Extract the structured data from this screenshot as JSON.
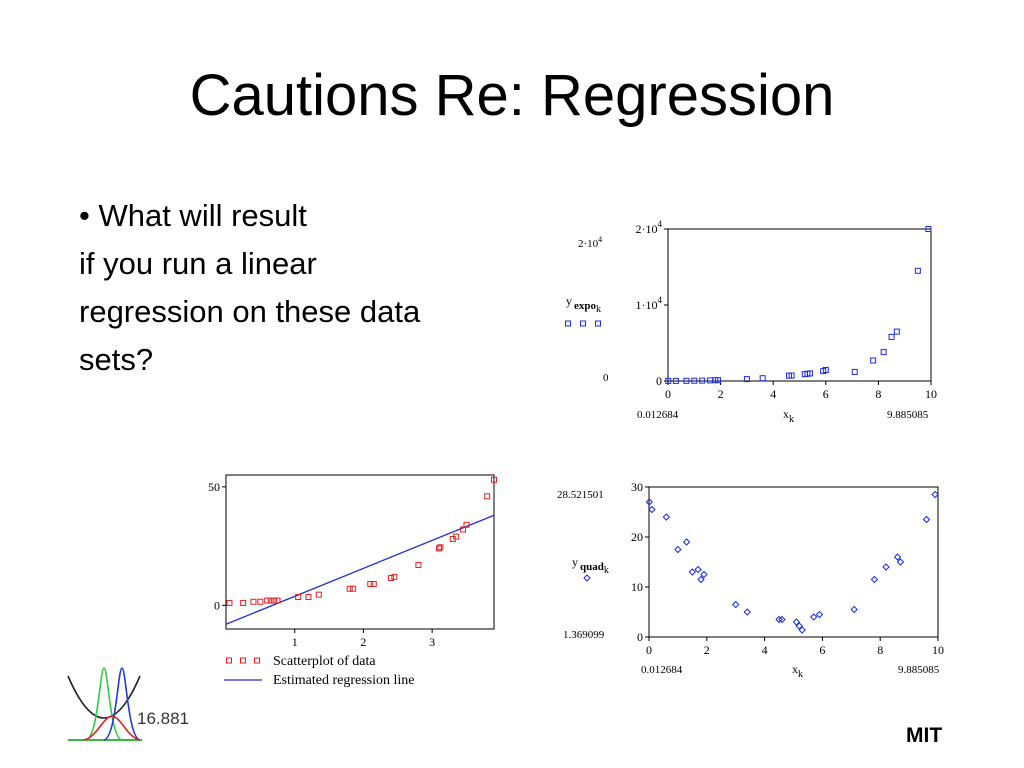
{
  "slide": {
    "title": "Cautions Re: Regression",
    "bullet_lines": [
      "• What will result",
      "if you run a linear",
      "regression on these data",
      "sets?"
    ],
    "footer": "MIT",
    "logo_number": "16.881"
  },
  "colors": {
    "scatter_red": "#e02020",
    "regression_blue": "#2030d0",
    "marker_blue": "#1a2ae0"
  },
  "chart_data": [
    {
      "id": "expo",
      "type": "scatter",
      "marker": "square",
      "ylabel_main": "y",
      "ylabel_sub": "expo",
      "ylabel_idx": "k",
      "xlabel_main": "x",
      "xlabel_idx": "k",
      "xlim": [
        0,
        10
      ],
      "ylim": [
        0,
        20000
      ],
      "xticks": [
        "0",
        "2",
        "4",
        "6",
        "8",
        "10"
      ],
      "yticks": [
        {
          "v": 0,
          "label": "0"
        },
        {
          "v": 10000,
          "label": "1·10"
        },
        {
          "v": 20000,
          "label": "2·10"
        }
      ],
      "ytick_exp": "4",
      "ymax_label": "2·10",
      "ymax_exp": "4",
      "ymin_label": "0",
      "xmin_label": "0.012684",
      "xmax_label": "9.885085",
      "x": [
        0.01,
        0.3,
        0.7,
        1.0,
        1.3,
        1.6,
        1.8,
        1.9,
        3.0,
        3.6,
        4.6,
        4.7,
        5.2,
        5.3,
        5.4,
        5.9,
        6.0,
        7.1,
        7.8,
        8.2,
        8.5,
        8.7,
        9.5,
        9.9
      ],
      "y": [
        10,
        15,
        25,
        35,
        50,
        80,
        100,
        110,
        250,
        370,
        700,
        720,
        900,
        950,
        1000,
        1300,
        1450,
        1200,
        2700,
        3800,
        5800,
        6500,
        14500,
        20000
      ]
    },
    {
      "id": "linear",
      "type": "scatter",
      "marker": "square",
      "xlim": [
        0,
        3.9
      ],
      "ylim": [
        -10,
        55
      ],
      "xticks": [
        "1",
        "2",
        "3"
      ],
      "yticks": [
        {
          "v": 0,
          "label": "0"
        },
        {
          "v": 50,
          "label": "50"
        }
      ],
      "x": [
        0.05,
        0.25,
        0.4,
        0.5,
        0.6,
        0.65,
        0.7,
        0.75,
        1.05,
        1.2,
        1.35,
        1.8,
        1.85,
        2.1,
        2.15,
        2.4,
        2.45,
        2.8,
        3.1,
        3.12,
        3.3,
        3.35,
        3.45,
        3.5,
        3.8,
        3.9
      ],
      "y": [
        1,
        1,
        1.5,
        1.5,
        2,
        2,
        2,
        2,
        3.5,
        3.5,
        4.5,
        7,
        7,
        9,
        9,
        11.5,
        12,
        17,
        24,
        24.5,
        28,
        29,
        32,
        34,
        46,
        53
      ],
      "regression": {
        "x": [
          0,
          3.9
        ],
        "y": [
          -8,
          38
        ]
      },
      "legend": [
        {
          "kind": "marker",
          "label": "Scatterplot of data"
        },
        {
          "kind": "line",
          "label": "Estimated regression line"
        }
      ]
    },
    {
      "id": "quad",
      "type": "scatter",
      "marker": "diamond",
      "ylabel_main": "y",
      "ylabel_sub": "quad",
      "ylabel_idx": "k",
      "xlabel_main": "x",
      "xlabel_idx": "k",
      "xlim": [
        0,
        10
      ],
      "ylim": [
        0,
        30
      ],
      "xticks": [
        "0",
        "2",
        "4",
        "6",
        "8",
        "10"
      ],
      "yticks": [
        {
          "v": 0,
          "label": "0"
        },
        {
          "v": 10,
          "label": "10"
        },
        {
          "v": 20,
          "label": "20"
        },
        {
          "v": 30,
          "label": "30"
        }
      ],
      "ymax_label": "28.521501",
      "ymin_label": "1.369099",
      "xmin_label": "0.012684",
      "xmax_label": "9.885085",
      "x": [
        0.01,
        0.1,
        0.6,
        1.0,
        1.3,
        1.5,
        1.7,
        1.8,
        1.9,
        3.0,
        3.4,
        4.5,
        4.6,
        5.1,
        5.2,
        5.3,
        5.7,
        5.9,
        7.1,
        7.8,
        8.2,
        8.6,
        8.7,
        9.6,
        9.9
      ],
      "y": [
        27,
        25.5,
        24,
        17.5,
        19,
        13,
        13.5,
        11.5,
        12.5,
        6.5,
        5,
        3.5,
        3.5,
        3,
        2.2,
        1.4,
        4,
        4.5,
        5.5,
        11.5,
        14,
        16,
        15,
        23.5,
        28.5
      ]
    }
  ]
}
